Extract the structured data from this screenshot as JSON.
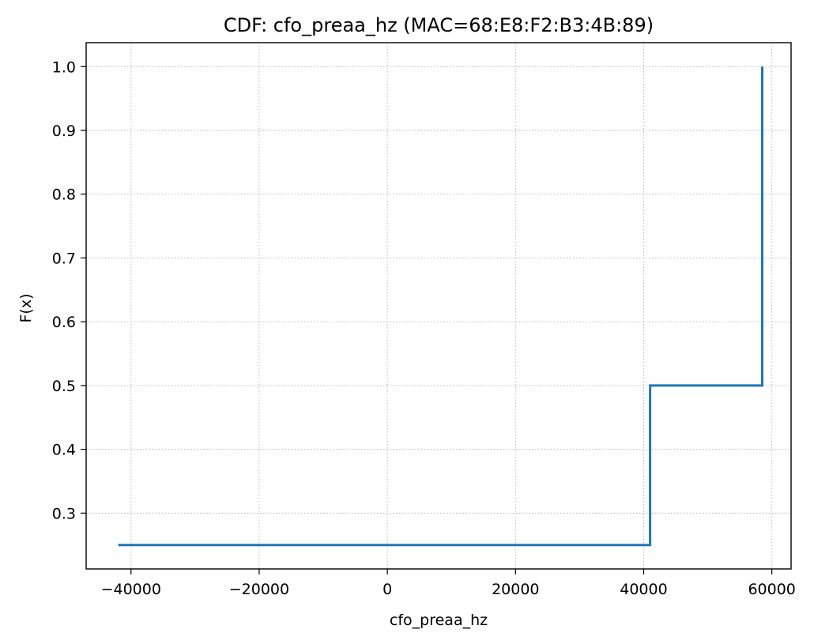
{
  "chart_data": {
    "type": "line",
    "drawstyle": "steps-post",
    "title": "CDF: cfo_preaa_hz (MAC=68:E8:F2:B3:4B:89)",
    "xlabel": "cfo_preaa_hz",
    "ylabel": "F(x)",
    "xlim": [
      -47000,
      63000
    ],
    "ylim": [
      0.2125,
      1.0375
    ],
    "xticks": [
      -40000,
      -20000,
      0,
      20000,
      40000,
      60000
    ],
    "xtick_labels": [
      "−40000",
      "−20000",
      "0",
      "20000",
      "40000",
      "60000"
    ],
    "yticks": [
      0.3,
      0.4,
      0.5,
      0.6,
      0.7,
      0.8,
      0.9,
      1.0
    ],
    "ytick_labels": [
      "0.3",
      "0.4",
      "0.5",
      "0.6",
      "0.7",
      "0.8",
      "0.9",
      "1.0"
    ],
    "grid": true,
    "series": [
      {
        "color": "#1f77b4",
        "x": [
          -42000,
          41000,
          58500,
          58500
        ],
        "y": [
          0.25,
          0.5,
          1.0,
          1.0
        ]
      }
    ]
  }
}
